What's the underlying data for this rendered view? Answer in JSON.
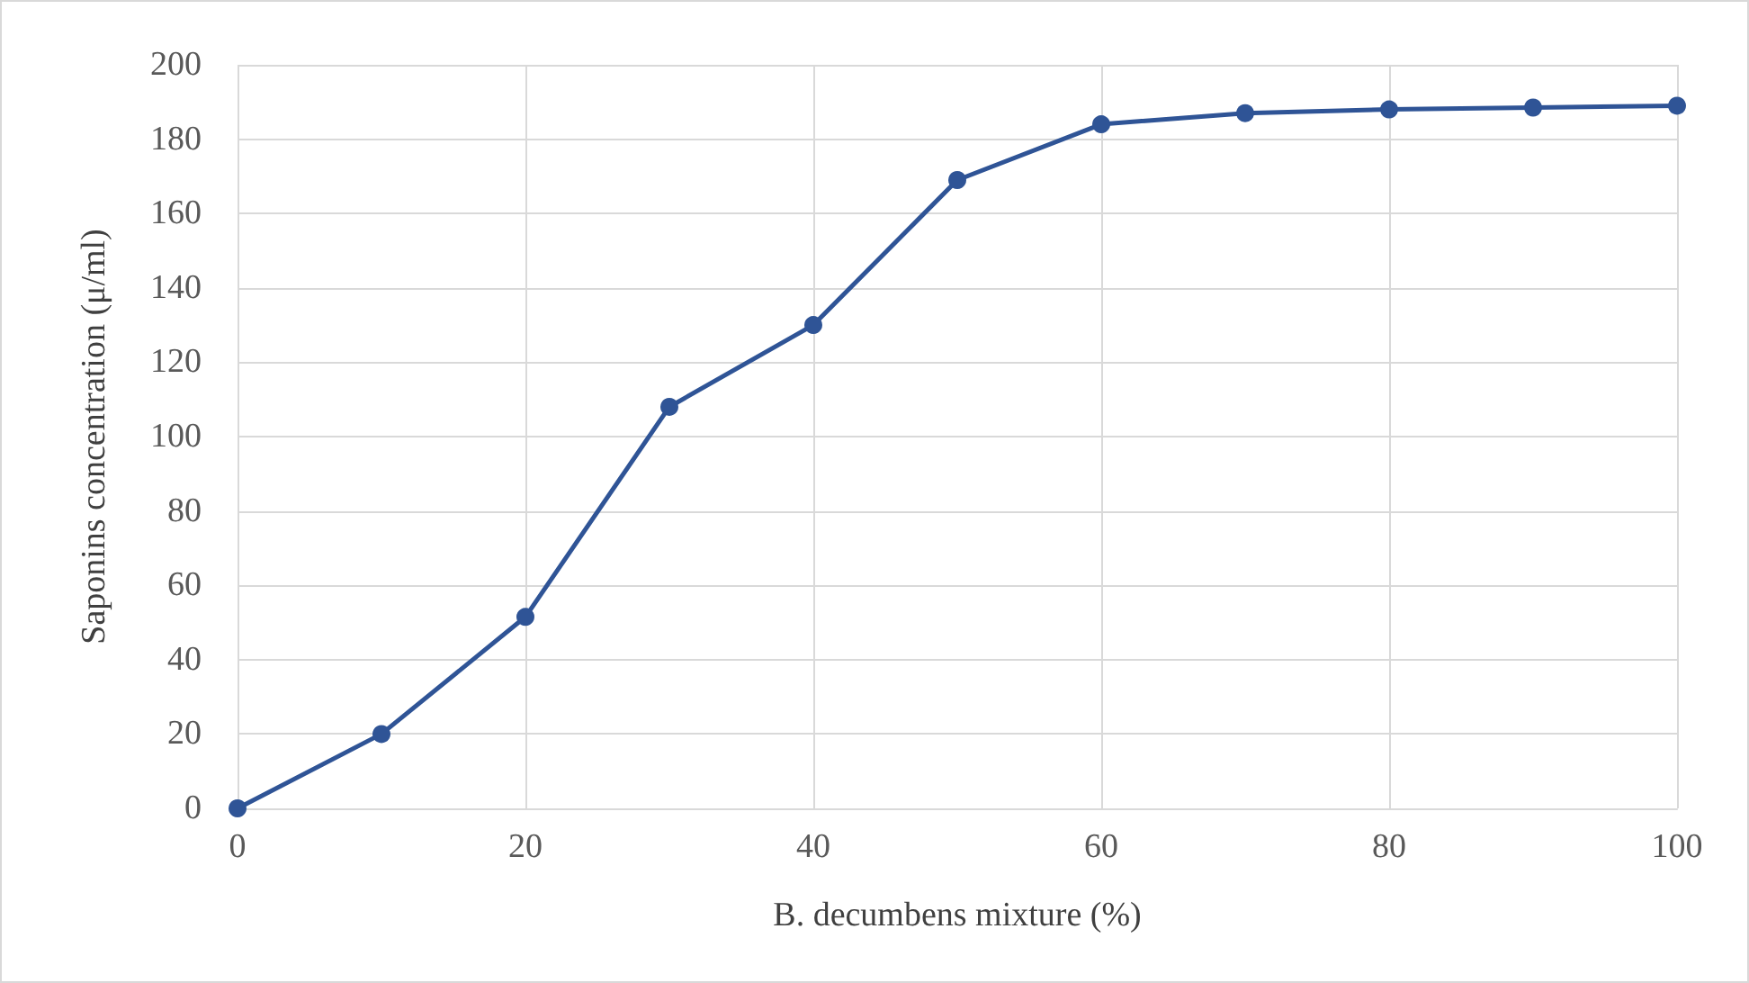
{
  "chart_data": {
    "type": "line",
    "xlabel": "B. decumbens mixture (%)",
    "ylabel": "Saponins concentration (μ/ml)",
    "x": [
      0,
      10,
      20,
      30,
      40,
      50,
      60,
      70,
      80,
      90,
      100
    ],
    "series": [
      {
        "color": "#2f5496",
        "values": [
          0,
          20,
          51.5,
          108,
          130,
          169,
          184,
          187,
          188,
          188.5,
          189
        ]
      }
    ],
    "xlim": [
      0,
      100
    ],
    "xticks": [
      0,
      20,
      40,
      60,
      80,
      100
    ],
    "ylim": [
      0,
      200
    ],
    "yticks": [
      0,
      20,
      40,
      60,
      80,
      100,
      120,
      140,
      160,
      180,
      200
    ],
    "grid": true,
    "marker": "circle",
    "line_style": "solid"
  }
}
